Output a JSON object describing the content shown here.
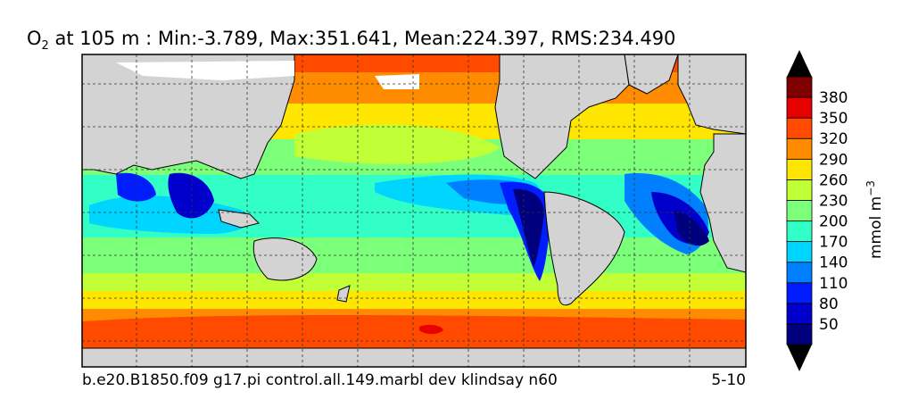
{
  "figure": {
    "title_main": "O",
    "title_sub": "2",
    "title_rest": " at 105 m : Min:-3.789, Max:351.641, Mean:224.397, RMS:234.490",
    "caption_left": "b.e20.B1850.f09 g17.pi control.all.149.marbl dev klindsay n60",
    "caption_right": "5-10"
  },
  "colorbar": {
    "unit_label": "mmol m",
    "unit_exp": "−3",
    "ticks": [
      "50",
      "80",
      "110",
      "140",
      "170",
      "200",
      "230",
      "260",
      "290",
      "320",
      "350",
      "380"
    ]
  },
  "colors": {
    "levels": [
      "#00007f",
      "#0000cd",
      "#001dff",
      "#0080ff",
      "#00d5ff",
      "#31ffc5",
      "#7cff79",
      "#c1ff36",
      "#ffe600",
      "#ff8c00",
      "#ff4a00",
      "#e60000",
      "#7f0000"
    ],
    "land": "#d3d3d3"
  },
  "chart_data": {
    "type": "heatmap",
    "variable": "O2",
    "depth_m": 105,
    "min": -3.789,
    "max": 351.641,
    "mean": 224.397,
    "rms": 234.49,
    "units": "mmol m-3",
    "contour_levels": [
      50,
      80,
      110,
      140,
      170,
      200,
      230,
      260,
      290,
      320,
      350,
      380
    ],
    "colorbar_extend": "both",
    "grid": true
  }
}
